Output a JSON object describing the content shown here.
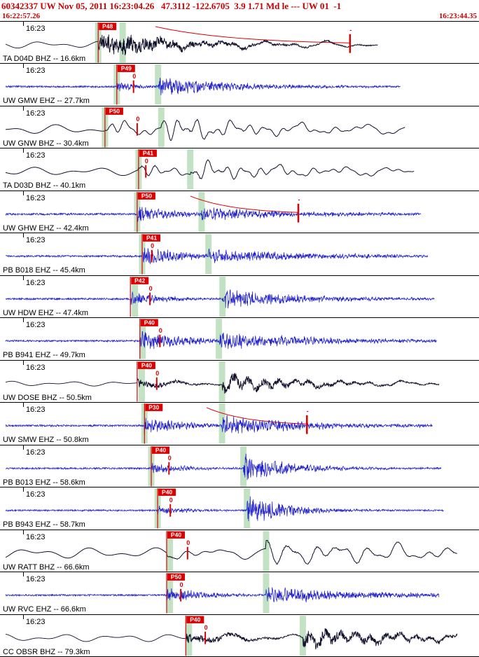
{
  "colors": {
    "header": "#cc0000",
    "dark_trace": "#10102a",
    "blue_trace": "#2121cd",
    "pick": "#dd0000",
    "band": "#c3e2c3",
    "text": "#000000"
  },
  "header": {
    "line1": "60342337 UW Nov 05, 2011 16:23:04.26   47.3112 -122.6705  3.9 1.71 Md le --- UW 01  -1",
    "window_start": "16:22:57.26",
    "window_end": "16:23:44.35"
  },
  "traces": [
    {
      "label": "TA D04D BHZ -- 16.6km",
      "sta": "D04D",
      "time_label": "16:23",
      "pick_label": "P48",
      "color": "dark",
      "style": "mix",
      "pick": 0.204,
      "end": 0.82,
      "bands": [
        0.204,
        0.258
      ],
      "marker": {
        "type": "minus",
        "label": "-",
        "pos": 0.759
      },
      "coda": {
        "start": 0.33,
        "end": 0.759
      },
      "wave": {
        "pre": 5,
        "pAmp": 17,
        "pTau": 0.1,
        "s": 0.258,
        "sAmp": 7,
        "sTau": 0.3
      }
    },
    {
      "label": "UW GMW EHZ -- 27.7km",
      "sta": "GMW",
      "time_label": "16:23",
      "pick_label": "P49",
      "color": "blue",
      "style": "hf",
      "pick": 0.245,
      "end": 0.87,
      "bands": [
        0.245,
        0.336
      ],
      "marker": {
        "type": "zero",
        "label": "0",
        "pos": 0.282
      },
      "wave": {
        "pre": 1.2,
        "pAmp": 7,
        "pTau": 0.05,
        "s": 0.336,
        "sAmp": 13,
        "sTau": 0.16
      }
    },
    {
      "label": "UW GNW BHZ -- 30.4km",
      "sta": "GNW",
      "time_label": "16:23",
      "pick_label": "P50",
      "color": "dark",
      "style": "lf",
      "pick": 0.219,
      "end": 0.88,
      "bands": [
        0.219,
        0.343
      ],
      "marker": {
        "type": "zero",
        "label": "0",
        "pos": 0.29
      },
      "wave": {
        "pre": 7,
        "pAmp": 13,
        "pTau": 0.09,
        "s": 0.343,
        "sAmp": 15,
        "sTau": 0.26
      }
    },
    {
      "label": "TA D03D BHZ -- 40.1km",
      "sta": "D03D",
      "time_label": "16:23",
      "pick_label": "P41",
      "color": "dark",
      "style": "lf",
      "pick": 0.293,
      "end": 0.9,
      "bands": [
        0.293,
        0.407
      ],
      "marker": {
        "type": "zero",
        "label": "0",
        "pos": 0.309
      },
      "wave": {
        "pre": 6,
        "pAmp": 13,
        "pTau": 0.07,
        "s": 0.407,
        "sAmp": 12,
        "sTau": 0.28
      }
    },
    {
      "label": "UW GHW EHZ -- 42.4km",
      "sta": "GHW",
      "time_label": "16:23",
      "pick_label": "P50",
      "color": "blue",
      "style": "hf",
      "pick": 0.29,
      "end": 0.915,
      "bands": [
        0.29,
        0.432
      ],
      "marker": {
        "type": "minus",
        "label": "-",
        "pos": 0.645
      },
      "coda": {
        "start": 0.407,
        "end": 0.645
      },
      "wave": {
        "pre": 1.4,
        "pAmp": 12,
        "pTau": 0.08,
        "s": 0.432,
        "sAmp": 8,
        "sTau": 0.22
      }
    },
    {
      "label": "PB B018 EHZ -- 45.4km",
      "sta": "B018",
      "time_label": "16:23",
      "pick_label": "P41",
      "color": "blue",
      "style": "hf",
      "pick": 0.301,
      "end": 0.93,
      "bands": [
        0.301,
        0.447
      ],
      "marker": {
        "type": "zero",
        "label": "0",
        "pos": 0.322
      },
      "wave": {
        "pre": 1.3,
        "pAmp": 15,
        "pTau": 0.09,
        "s": 0.447,
        "sAmp": 8,
        "sTau": 0.26
      }
    },
    {
      "label": "UW HDW EHZ -- 47.4km",
      "sta": "HDW",
      "time_label": "16:23",
      "pick_label": "P42",
      "color": "blue",
      "style": "hf",
      "pick": 0.275,
      "end": 0.945,
      "bands": [
        0.285,
        0.478
      ],
      "marker": {
        "type": "zero",
        "label": "0",
        "pos": 0.318
      },
      "wave": {
        "pre": 1.3,
        "pAmp": 10,
        "pTau": 0.07,
        "s": 0.478,
        "sAmp": 14,
        "sTau": 0.17
      }
    },
    {
      "label": "PB B941 EHZ -- 49.7km",
      "sta": "B941",
      "time_label": "16:23",
      "pick_label": "P40",
      "color": "blue",
      "style": "hf",
      "pick": 0.296,
      "end": 0.95,
      "bands": [
        0.302,
        0.47
      ],
      "marker": {
        "type": "zero",
        "label": "0",
        "pos": 0.34
      },
      "wave": {
        "pre": 1.2,
        "pAmp": 14,
        "pTau": 0.11,
        "s": 0.47,
        "sAmp": 9,
        "sTau": 0.28
      }
    },
    {
      "label": "UW DOSE BHZ -- 50.5km",
      "sta": "DOSE",
      "time_label": "16:23",
      "pick_label": "P40",
      "color": "dark",
      "style": "mix",
      "pick": 0.29,
      "end": 0.955,
      "bands": [
        0.3,
        0.477
      ],
      "marker": {
        "type": "zero",
        "label": "0",
        "pos": 0.333
      },
      "wave": {
        "pre": 3.5,
        "pAmp": 6,
        "pTau": 0.09,
        "s": 0.477,
        "sAmp": 15,
        "sTau": 0.2
      }
    },
    {
      "label": "UW SMW EHZ -- 50.8km",
      "sta": "SMW",
      "time_label": "16:23",
      "pick_label": "P30",
      "color": "blue",
      "style": "hf",
      "pick": 0.306,
      "end": 0.94,
      "bands": [
        0.306,
        0.477
      ],
      "marker": {
        "type": "minus",
        "label": "-",
        "pos": 0.664
      },
      "coda": {
        "start": 0.443,
        "end": 0.664
      },
      "wave": {
        "pre": 1.3,
        "pAmp": 12,
        "pTau": 0.09,
        "s": 0.477,
        "sAmp": 12,
        "sTau": 0.2
      }
    },
    {
      "label": "PB B013 EHZ -- 58.6km",
      "sta": "B013",
      "time_label": "16:23",
      "pick_label": "P40",
      "color": "blue",
      "style": "hf",
      "pick": 0.321,
      "end": 0.96,
      "bands": [
        0.321,
        0.524
      ],
      "marker": {
        "type": "zero",
        "label": "0",
        "pos": 0.36
      },
      "wave": {
        "pre": 1.2,
        "pAmp": 8,
        "pTau": 0.07,
        "s": 0.524,
        "sAmp": 19,
        "sTau": 0.11
      }
    },
    {
      "label": "PB B943 EHZ -- 58.7km",
      "sta": "B943",
      "time_label": "16:23",
      "pick_label": "P40",
      "color": "blue",
      "style": "hf",
      "pick": 0.335,
      "end": 0.965,
      "bands": [
        0.335,
        0.532
      ],
      "marker": {
        "type": "zero",
        "label": "0",
        "pos": 0.363
      },
      "wave": {
        "pre": 1.1,
        "pAmp": 6,
        "pTau": 0.07,
        "s": 0.532,
        "sAmp": 21,
        "sTau": 0.09
      }
    },
    {
      "label": "UW RATT BHZ -- 66.6km",
      "sta": "RATT",
      "time_label": "16:23",
      "pick_label": "P40",
      "color": "dark",
      "style": "lf",
      "pick": 0.355,
      "end": 0.995,
      "bands": [
        0.362,
        0.574
      ],
      "marker": {
        "type": "zero",
        "label": "0",
        "pos": 0.401
      },
      "wave": {
        "pre": 8,
        "pAmp": 9,
        "pTau": 0.1,
        "s": 0.574,
        "sAmp": 16,
        "sTau": 0.5,
        "lc": 17
      }
    },
    {
      "label": "UW RVC EHZ -- 66.6km",
      "sta": "RVC",
      "time_label": "16:23",
      "pick_label": "P50",
      "color": "blue",
      "style": "hf",
      "pick": 0.355,
      "end": 0.955,
      "bands": [
        0.362,
        0.574
      ],
      "marker": {
        "type": "zero",
        "label": "0",
        "pos": 0.386
      },
      "wave": {
        "pre": 1.2,
        "pAmp": 10,
        "pTau": 0.09,
        "s": 0.574,
        "sAmp": 10,
        "sTau": 0.26
      }
    },
    {
      "label": "CC OBSR BHZ -- 79.3km",
      "sta": "OBSR",
      "time_label": "16:23",
      "pick_label": "P40",
      "color": "dark",
      "style": "mix",
      "pick": 0.397,
      "end": 0.995,
      "bands": [
        0.404,
        0.655
      ],
      "marker": {
        "type": "zero",
        "label": "0",
        "pos": 0.44
      },
      "wave": {
        "pre": 5.5,
        "pAmp": 7,
        "pTau": 0.12,
        "s": 0.655,
        "sAmp": 17,
        "sTau": 0.25
      }
    }
  ]
}
